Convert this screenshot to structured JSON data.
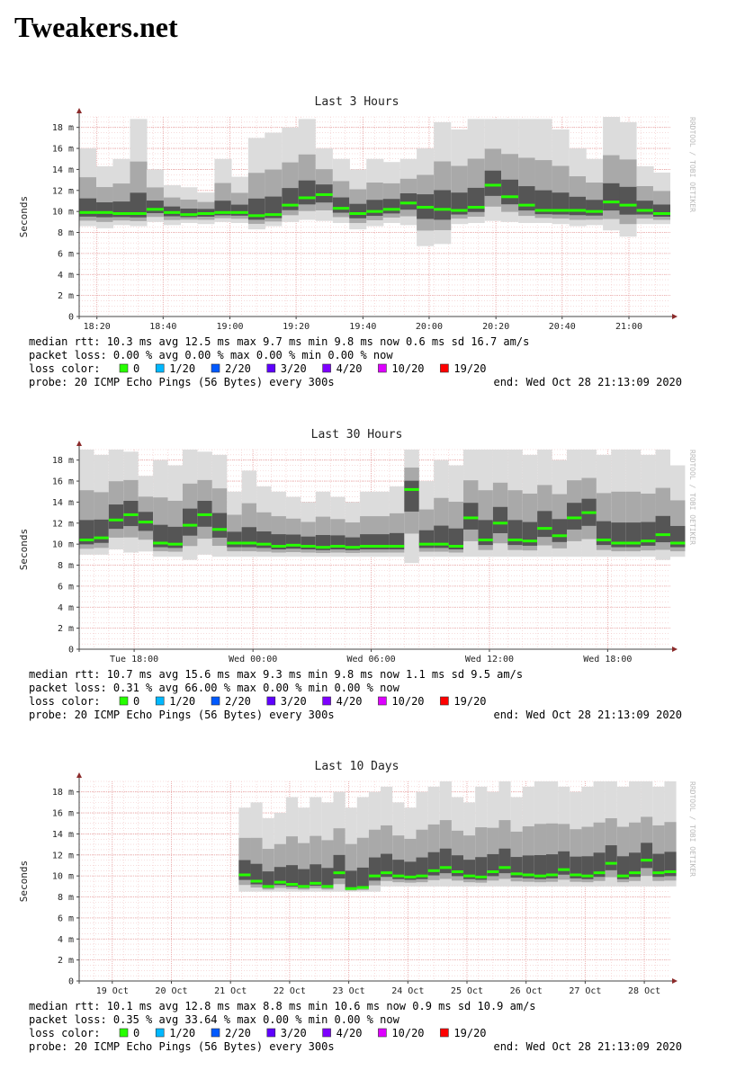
{
  "page": {
    "site_title": "Tweakers.net"
  },
  "legend": {
    "loss_color_label": "loss color:",
    "items": [
      {
        "label": "0",
        "color": "#26ff00"
      },
      {
        "label": "1/20",
        "color": "#00b8ff"
      },
      {
        "label": "2/20",
        "color": "#0059ff"
      },
      {
        "label": "3/20",
        "color": "#5e00ff"
      },
      {
        "label": "4/20",
        "color": "#7e00ff"
      },
      {
        "label": "10/20",
        "color": "#dd00ff"
      },
      {
        "label": "19/20",
        "color": "#ff0000"
      }
    ]
  },
  "watermark": "RRDTOOL / TOBI OETIKER",
  "chart_data": [
    {
      "type": "area",
      "title": "Last 3 Hours",
      "ylabel": "Seconds",
      "ylim": [
        0,
        0.019
      ],
      "yticks": [
        0,
        0.002,
        0.004,
        0.006,
        0.008,
        0.01,
        0.012,
        0.014,
        0.016,
        0.018
      ],
      "ytick_labels": [
        "0",
        "2 m",
        "4 m",
        "6 m",
        "8 m",
        "10 m",
        "12 m",
        "14 m",
        "16 m",
        "18 m"
      ],
      "xlim": [
        0,
        1
      ],
      "xticks": [
        0.03,
        0.142,
        0.255,
        0.367,
        0.48,
        0.592,
        0.705,
        0.817,
        0.93
      ],
      "xtick_labels": [
        "18:20",
        "18:40",
        "19:00",
        "19:20",
        "19:40",
        "20:00",
        "20:20",
        "20:40",
        "21:00"
      ],
      "grid": true,
      "series": [
        {
          "name": "median rtt",
          "x": [
            0.0,
            0.029,
            0.057,
            0.086,
            0.114,
            0.143,
            0.171,
            0.2,
            0.229,
            0.257,
            0.286,
            0.314,
            0.343,
            0.371,
            0.4,
            0.429,
            0.457,
            0.486,
            0.514,
            0.543,
            0.571,
            0.6,
            0.629,
            0.657,
            0.686,
            0.714,
            0.743,
            0.771,
            0.8,
            0.829,
            0.857,
            0.886,
            0.914,
            0.943,
            0.971
          ],
          "y": [
            0.0099,
            0.0099,
            0.0098,
            0.0098,
            0.0102,
            0.0099,
            0.0097,
            0.0098,
            0.0099,
            0.0099,
            0.0096,
            0.0097,
            0.0106,
            0.0113,
            0.0116,
            0.0103,
            0.0098,
            0.01,
            0.0102,
            0.0108,
            0.0104,
            0.0102,
            0.0101,
            0.0104,
            0.0125,
            0.0114,
            0.0106,
            0.0101,
            0.0101,
            0.0101,
            0.01,
            0.0109,
            0.0106,
            0.0101,
            0.0098
          ],
          "min": [
            0.0086,
            0.0084,
            0.0087,
            0.0086,
            0.009,
            0.0087,
            0.0089,
            0.0088,
            0.009,
            0.0089,
            0.0083,
            0.0086,
            0.009,
            0.0092,
            0.0091,
            0.0089,
            0.0083,
            0.0086,
            0.0089,
            0.0087,
            0.0067,
            0.0069,
            0.0088,
            0.0089,
            0.0091,
            0.009,
            0.0089,
            0.0089,
            0.0088,
            0.0086,
            0.0087,
            0.0082,
            0.0076,
            0.0088,
            0.0088
          ],
          "max": [
            0.016,
            0.0143,
            0.015,
            0.0188,
            0.014,
            0.0125,
            0.0123,
            0.0118,
            0.015,
            0.0133,
            0.017,
            0.0175,
            0.018,
            0.0188,
            0.016,
            0.015,
            0.014,
            0.015,
            0.0147,
            0.015,
            0.016,
            0.0185,
            0.0178,
            0.0188,
            0.0188,
            0.0188,
            0.0188,
            0.0188,
            0.0178,
            0.016,
            0.015,
            0.019,
            0.0185,
            0.0143,
            0.0137
          ]
        }
      ],
      "stats": [
        "median rtt:  10.3 ms avg  12.5 ms max  9.7 ms min  9.8 ms now  0.6 ms sd  16.7  am/s",
        "packet loss: 0.00 % avg  0.00 % max  0.00 % min  0.00 % now"
      ],
      "probe": "probe:       20 ICMP Echo Pings (56 Bytes) every 300s",
      "end": "end: Wed Oct 28 21:13:09 2020"
    },
    {
      "type": "area",
      "title": "Last 30 Hours",
      "ylabel": "Seconds",
      "ylim": [
        0,
        0.019
      ],
      "yticks": [
        0,
        0.002,
        0.004,
        0.006,
        0.008,
        0.01,
        0.012,
        0.014,
        0.016,
        0.018
      ],
      "ytick_labels": [
        "0",
        "2 m",
        "4 m",
        "6 m",
        "8 m",
        "10 m",
        "12 m",
        "14 m",
        "16 m",
        "18 m"
      ],
      "xlim": [
        0,
        1
      ],
      "xticks": [
        0.093,
        0.294,
        0.494,
        0.694,
        0.894
      ],
      "xtick_labels": [
        "Tue 18:00",
        "Wed 00:00",
        "Wed 06:00",
        "Wed 12:00",
        "Wed 18:00"
      ],
      "grid": true,
      "series": [
        {
          "name": "median rtt",
          "x": [
            0.0,
            0.025,
            0.05,
            0.075,
            0.1,
            0.125,
            0.15,
            0.175,
            0.2,
            0.225,
            0.25,
            0.275,
            0.3,
            0.325,
            0.35,
            0.375,
            0.4,
            0.425,
            0.45,
            0.475,
            0.5,
            0.525,
            0.55,
            0.575,
            0.6,
            0.625,
            0.65,
            0.675,
            0.7,
            0.725,
            0.75,
            0.775,
            0.8,
            0.825,
            0.85,
            0.875,
            0.9,
            0.925,
            0.95,
            0.975,
            1.0
          ],
          "y": [
            0.0104,
            0.0106,
            0.0123,
            0.0128,
            0.0121,
            0.0101,
            0.01,
            0.0118,
            0.0128,
            0.0114,
            0.0101,
            0.0101,
            0.01,
            0.0098,
            0.0099,
            0.0098,
            0.0097,
            0.0098,
            0.0097,
            0.0098,
            0.0098,
            0.0098,
            0.0152,
            0.01,
            0.01,
            0.0098,
            0.0125,
            0.0104,
            0.012,
            0.0104,
            0.0103,
            0.0115,
            0.0108,
            0.0125,
            0.013,
            0.0104,
            0.0101,
            0.0101,
            0.0103,
            0.0109,
            0.0101
          ],
          "min": [
            0.009,
            0.009,
            0.0095,
            0.0092,
            0.0093,
            0.0088,
            0.0088,
            0.0085,
            0.009,
            0.0088,
            0.0088,
            0.0088,
            0.0088,
            0.0088,
            0.0088,
            0.0088,
            0.0088,
            0.0088,
            0.0088,
            0.0088,
            0.0088,
            0.0088,
            0.0082,
            0.0088,
            0.0088,
            0.0088,
            0.0088,
            0.0088,
            0.0088,
            0.0088,
            0.0088,
            0.0088,
            0.0088,
            0.0088,
            0.0088,
            0.0088,
            0.0088,
            0.0088,
            0.0088,
            0.0085,
            0.0088
          ],
          "max": [
            0.019,
            0.0185,
            0.019,
            0.0188,
            0.0165,
            0.018,
            0.0175,
            0.019,
            0.0188,
            0.0185,
            0.015,
            0.017,
            0.0155,
            0.015,
            0.0145,
            0.014,
            0.015,
            0.0145,
            0.014,
            0.015,
            0.015,
            0.0155,
            0.019,
            0.016,
            0.018,
            0.0175,
            0.019,
            0.019,
            0.019,
            0.019,
            0.0185,
            0.019,
            0.018,
            0.019,
            0.019,
            0.0185,
            0.019,
            0.019,
            0.0185,
            0.019,
            0.0175
          ]
        }
      ],
      "stats": [
        "median rtt:  10.7 ms avg  15.6 ms max  9.3 ms min  9.8 ms now  1.1 ms sd  9.5   am/s",
        "packet loss: 0.31 % avg  66.00 % max  0.00 % min  0.00 % now"
      ],
      "probe": "probe:       20 ICMP Echo Pings (56 Bytes) every 300s",
      "end": "end: Wed Oct 28 21:13:09 2020"
    },
    {
      "type": "area",
      "title": "Last 10 Days",
      "ylabel": "Seconds",
      "ylim": [
        0,
        0.019
      ],
      "yticks": [
        0,
        0.002,
        0.004,
        0.006,
        0.008,
        0.01,
        0.012,
        0.014,
        0.016,
        0.018
      ],
      "ytick_labels": [
        "0",
        "2 m",
        "4 m",
        "6 m",
        "8 m",
        "10 m",
        "12 m",
        "14 m",
        "16 m",
        "18 m"
      ],
      "xlim": [
        0,
        1
      ],
      "xticks": [
        0.056,
        0.156,
        0.256,
        0.356,
        0.456,
        0.556,
        0.656,
        0.756,
        0.856,
        0.956
      ],
      "xtick_labels": [
        "19 Oct",
        "20 Oct",
        "21 Oct",
        "22 Oct",
        "23 Oct",
        "24 Oct",
        "25 Oct",
        "26 Oct",
        "27 Oct",
        "28 Oct"
      ],
      "grid": true,
      "series": [
        {
          "name": "median rtt",
          "x": [
            0.27,
            0.29,
            0.31,
            0.33,
            0.35,
            0.37,
            0.39,
            0.41,
            0.43,
            0.45,
            0.47,
            0.49,
            0.51,
            0.53,
            0.55,
            0.57,
            0.59,
            0.61,
            0.63,
            0.65,
            0.67,
            0.69,
            0.71,
            0.73,
            0.75,
            0.77,
            0.79,
            0.81,
            0.83,
            0.85,
            0.87,
            0.89,
            0.91,
            0.93,
            0.95,
            0.97,
            0.99
          ],
          "y": [
            0.0101,
            0.0095,
            0.009,
            0.0094,
            0.0092,
            0.009,
            0.0093,
            0.009,
            0.0103,
            0.0088,
            0.0089,
            0.01,
            0.0103,
            0.01,
            0.0099,
            0.01,
            0.0105,
            0.0108,
            0.0104,
            0.01,
            0.0099,
            0.0104,
            0.0108,
            0.0102,
            0.0101,
            0.01,
            0.0101,
            0.0106,
            0.0101,
            0.01,
            0.0103,
            0.0112,
            0.01,
            0.0103,
            0.0115,
            0.0103,
            0.0104
          ],
          "min": [
            0.0085,
            0.0085,
            0.0085,
            0.0085,
            0.0085,
            0.0085,
            0.0085,
            0.0085,
            0.0085,
            0.0085,
            0.0085,
            0.0085,
            0.009,
            0.009,
            0.009,
            0.009,
            0.009,
            0.009,
            0.009,
            0.009,
            0.009,
            0.009,
            0.009,
            0.009,
            0.009,
            0.009,
            0.009,
            0.009,
            0.009,
            0.009,
            0.009,
            0.009,
            0.009,
            0.009,
            0.009,
            0.009,
            0.009
          ],
          "max": [
            0.0165,
            0.017,
            0.0155,
            0.016,
            0.0175,
            0.0165,
            0.0175,
            0.017,
            0.018,
            0.0165,
            0.0175,
            0.018,
            0.0185,
            0.017,
            0.0165,
            0.018,
            0.0185,
            0.019,
            0.0175,
            0.017,
            0.0185,
            0.018,
            0.019,
            0.0175,
            0.0185,
            0.019,
            0.019,
            0.0185,
            0.018,
            0.0185,
            0.019,
            0.019,
            0.0185,
            0.019,
            0.019,
            0.0185,
            0.019
          ]
        }
      ],
      "stats": [
        "median rtt:  10.1 ms avg  12.8 ms max  8.8 ms min  10.6 ms now  0.9 ms sd  10.9   am/s",
        "packet loss: 0.35 % avg  33.64 % max  0.00 % min  0.00 % now"
      ],
      "probe": "probe:       20 ICMP Echo Pings (56 Bytes) every 300s",
      "end": "end: Wed Oct 28 21:13:09 2020"
    }
  ]
}
